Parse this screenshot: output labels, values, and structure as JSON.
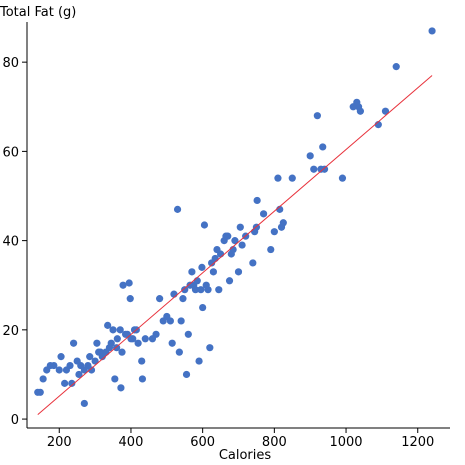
{
  "chart_data": {
    "type": "scatter",
    "title": "",
    "xlabel": "Calories",
    "ylabel": "Total Fat (g)",
    "xlim": [
      110,
      1290
    ],
    "ylim": [
      -2,
      89
    ],
    "x_ticks": [
      200,
      400,
      600,
      800,
      1000,
      1200
    ],
    "y_ticks": [
      0,
      20,
      40,
      60,
      80
    ],
    "x_tick_labels": [
      "200",
      "400",
      "600",
      "800",
      "1000",
      "1200"
    ],
    "y_tick_labels": [
      "0",
      "20",
      "40",
      "60",
      "80"
    ],
    "grid": false,
    "legend": "none",
    "point_color": "#4472c4",
    "trendline": {
      "color": "#e8323c",
      "x": [
        140,
        1240
      ],
      "y": [
        1,
        77
      ]
    },
    "points": [
      [
        140,
        6
      ],
      [
        147,
        6
      ],
      [
        155,
        9
      ],
      [
        165,
        11
      ],
      [
        175,
        12
      ],
      [
        185,
        12
      ],
      [
        200,
        11
      ],
      [
        205,
        14
      ],
      [
        215,
        8
      ],
      [
        220,
        11
      ],
      [
        230,
        12
      ],
      [
        235,
        8
      ],
      [
        240,
        17
      ],
      [
        250,
        13
      ],
      [
        255,
        10
      ],
      [
        260,
        12
      ],
      [
        270,
        3.5
      ],
      [
        270,
        11
      ],
      [
        280,
        12
      ],
      [
        285,
        14
      ],
      [
        290,
        11
      ],
      [
        300,
        13
      ],
      [
        305,
        17
      ],
      [
        310,
        15
      ],
      [
        315,
        15
      ],
      [
        320,
        14
      ],
      [
        330,
        15
      ],
      [
        335,
        21
      ],
      [
        340,
        16
      ],
      [
        345,
        17
      ],
      [
        350,
        20
      ],
      [
        355,
        9
      ],
      [
        360,
        16
      ],
      [
        362,
        18
      ],
      [
        370,
        20
      ],
      [
        372,
        7
      ],
      [
        375,
        15
      ],
      [
        378,
        30
      ],
      [
        385,
        19
      ],
      [
        390,
        19
      ],
      [
        395,
        30.5
      ],
      [
        398,
        27
      ],
      [
        400,
        18
      ],
      [
        405,
        18
      ],
      [
        410,
        20
      ],
      [
        415,
        20
      ],
      [
        420,
        17
      ],
      [
        430,
        13
      ],
      [
        432,
        9
      ],
      [
        440,
        18
      ],
      [
        460,
        18
      ],
      [
        470,
        19
      ],
      [
        480,
        27
      ],
      [
        490,
        22
      ],
      [
        500,
        23
      ],
      [
        510,
        22
      ],
      [
        515,
        17
      ],
      [
        520,
        28
      ],
      [
        530,
        47
      ],
      [
        535,
        15
      ],
      [
        540,
        22
      ],
      [
        545,
        27
      ],
      [
        550,
        29
      ],
      [
        555,
        10
      ],
      [
        560,
        19
      ],
      [
        565,
        30
      ],
      [
        570,
        33
      ],
      [
        575,
        30
      ],
      [
        580,
        29
      ],
      [
        585,
        31
      ],
      [
        590,
        13
      ],
      [
        595,
        29
      ],
      [
        598,
        34
      ],
      [
        600,
        25
      ],
      [
        605,
        43.5
      ],
      [
        610,
        30
      ],
      [
        615,
        29
      ],
      [
        620,
        16
      ],
      [
        625,
        35
      ],
      [
        630,
        33
      ],
      [
        635,
        36
      ],
      [
        640,
        38
      ],
      [
        645,
        29
      ],
      [
        650,
        37
      ],
      [
        660,
        40
      ],
      [
        665,
        41
      ],
      [
        670,
        41
      ],
      [
        675,
        31
      ],
      [
        680,
        37
      ],
      [
        685,
        38
      ],
      [
        690,
        40
      ],
      [
        700,
        33
      ],
      [
        705,
        43
      ],
      [
        710,
        39
      ],
      [
        720,
        41
      ],
      [
        740,
        35
      ],
      [
        745,
        42
      ],
      [
        750,
        43
      ],
      [
        752,
        49
      ],
      [
        770,
        46
      ],
      [
        790,
        38
      ],
      [
        800,
        42
      ],
      [
        810,
        54
      ],
      [
        815,
        47
      ],
      [
        820,
        43
      ],
      [
        825,
        44
      ],
      [
        850,
        54
      ],
      [
        900,
        59
      ],
      [
        910,
        56
      ],
      [
        920,
        68
      ],
      [
        930,
        56
      ],
      [
        935,
        61
      ],
      [
        940,
        56
      ],
      [
        990,
        54
      ],
      [
        1020,
        70
      ],
      [
        1030,
        71
      ],
      [
        1035,
        70
      ],
      [
        1040,
        69
      ],
      [
        1090,
        66
      ],
      [
        1110,
        69
      ],
      [
        1140,
        79
      ],
      [
        1240,
        87
      ]
    ]
  }
}
